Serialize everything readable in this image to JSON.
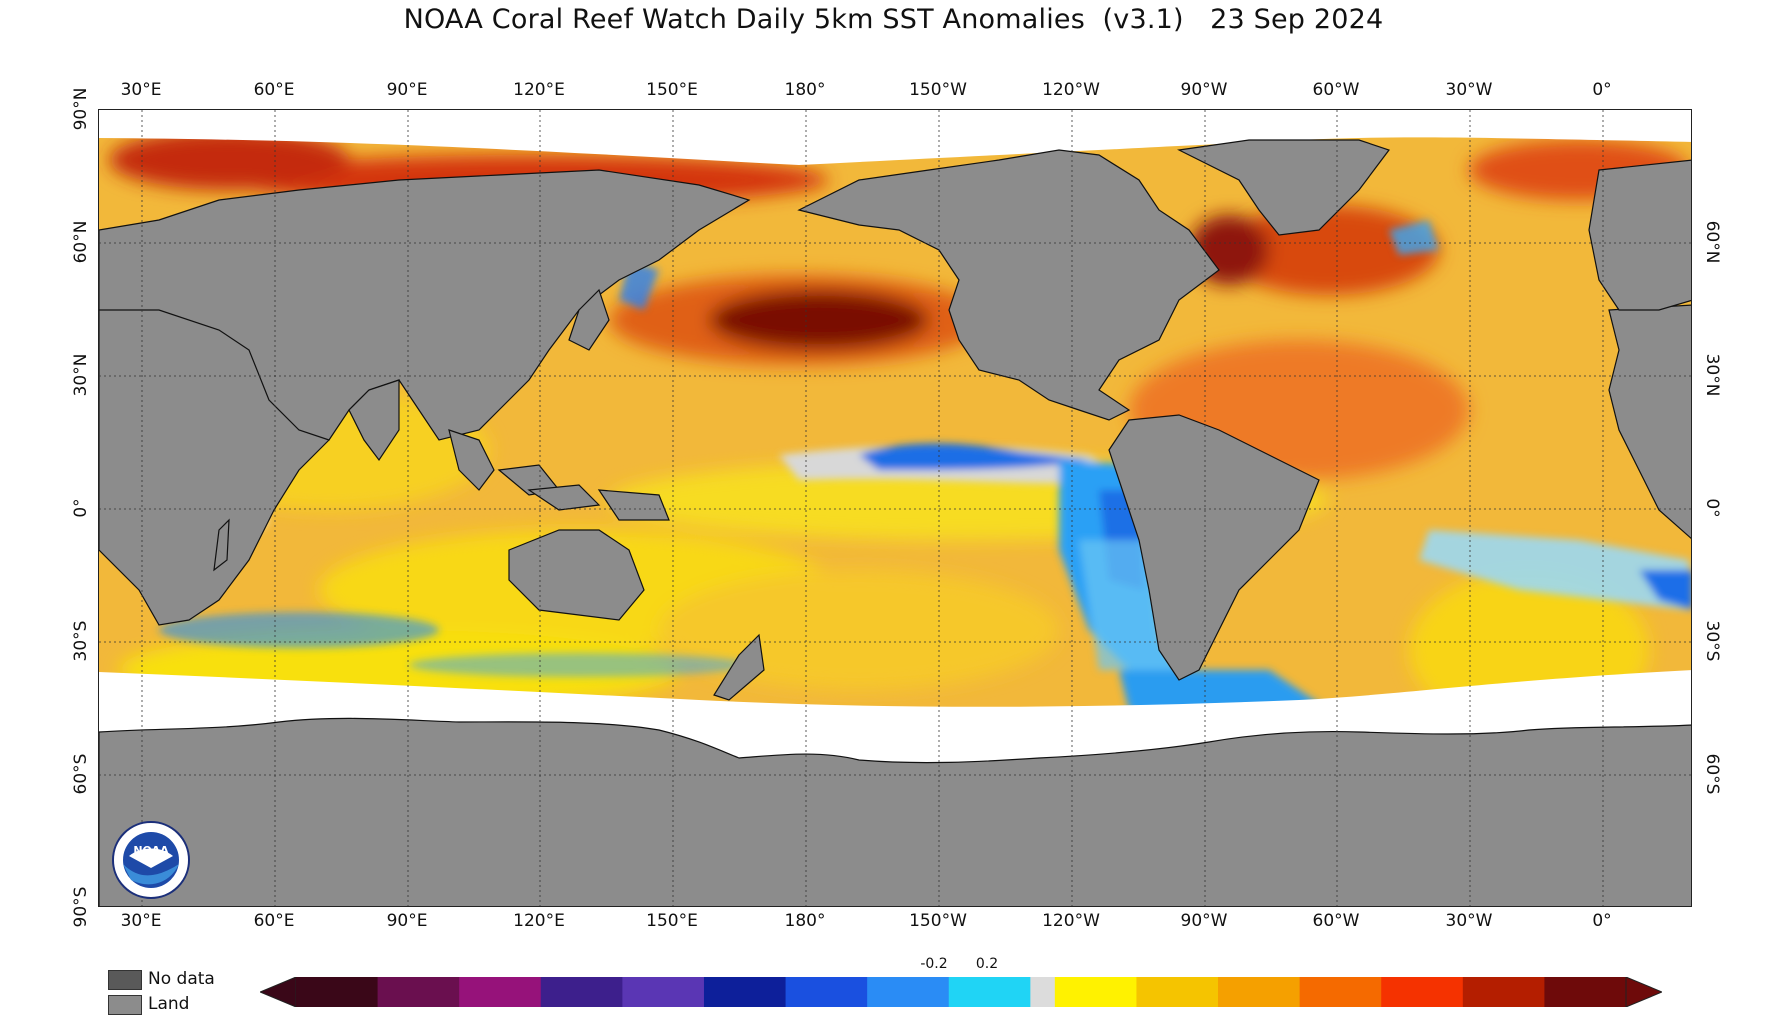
{
  "title": "NOAA Coral Reef Watch Daily 5km SST Anomalies  (v3.1)   23 Sep 2024",
  "lon_labels": [
    "30°E",
    "60°E",
    "90°E",
    "120°E",
    "150°E",
    "180°",
    "150°W",
    "120°W",
    "90°W",
    "60°W",
    "30°W",
    "0°"
  ],
  "lat_labels_left": [
    "90°N",
    "60°N",
    "30°N",
    "0°",
    "30°S",
    "60°S",
    "90°S"
  ],
  "lat_labels_right": [
    "60°N",
    "30°N",
    "0°",
    "30°S",
    "60°S"
  ],
  "legend": {
    "no_data": "No data",
    "land": "Land",
    "no_data_color": "#595959",
    "land_color": "#8c8c8c"
  },
  "colorbar": {
    "tick_labels": [
      "-0.2",
      "0.2"
    ],
    "colors": [
      "#3a0718",
      "#6a0f4f",
      "#96127a",
      "#3d1f8c",
      "#5a36b4",
      "#0d1f9a",
      "#1a50e0",
      "#2a8cf5",
      "#20d4f5",
      "#dcdcdc",
      "#fff200",
      "#f5c400",
      "#f5a000",
      "#f56a00",
      "#f53200",
      "#b41e00",
      "#6e0a0a"
    ]
  },
  "colors": {
    "land": "#8c8c8c",
    "ice": "#ffffff",
    "warm_base": "#f2b83a",
    "hot": "#a01a05",
    "very_hot": "#5a0505",
    "cool": "#1e8cf0",
    "cold": "#0a3cc8",
    "neutral": "#d8d8d8"
  },
  "logo_text": "NOAA"
}
